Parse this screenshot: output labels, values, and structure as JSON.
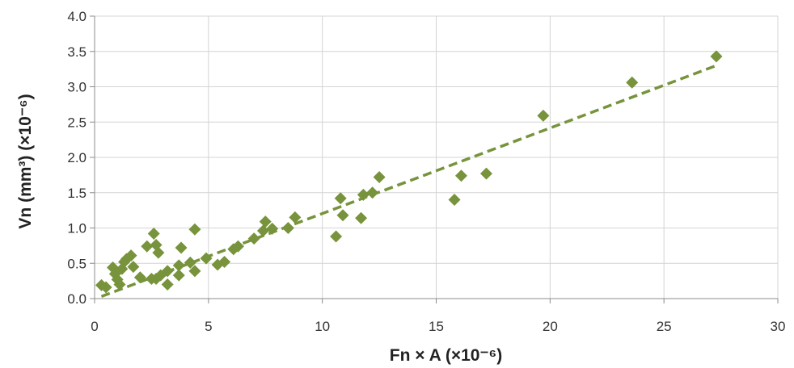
{
  "chart_data": {
    "type": "scatter",
    "xlabel": "Fn × A (×10⁻⁶)",
    "ylabel": "Vn (mm³) (×10⁻⁶)",
    "xlim": [
      0,
      30
    ],
    "ylim": [
      0,
      4.0
    ],
    "x_ticks": [
      "0",
      "5",
      "10",
      "15",
      "20",
      "25",
      "30"
    ],
    "y_ticks": [
      "0.0",
      "0.5",
      "1.0",
      "1.5",
      "2.0",
      "2.5",
      "3.0",
      "3.5",
      "4.0"
    ],
    "grid": true,
    "legend": "none",
    "marker": "diamond",
    "series": [
      {
        "points": [
          [
            0.3,
            0.19
          ],
          [
            0.5,
            0.16
          ],
          [
            0.8,
            0.44
          ],
          [
            0.9,
            0.35
          ],
          [
            1.0,
            0.27
          ],
          [
            1.1,
            0.2
          ],
          [
            1.2,
            0.42
          ],
          [
            1.3,
            0.52
          ],
          [
            1.4,
            0.56
          ],
          [
            1.6,
            0.61
          ],
          [
            1.7,
            0.45
          ],
          [
            2.0,
            0.3
          ],
          [
            2.3,
            0.74
          ],
          [
            2.5,
            0.28
          ],
          [
            2.6,
            0.92
          ],
          [
            2.7,
            0.76
          ],
          [
            2.7,
            0.28
          ],
          [
            2.8,
            0.65
          ],
          [
            2.9,
            0.33
          ],
          [
            3.2,
            0.39
          ],
          [
            3.2,
            0.2
          ],
          [
            3.7,
            0.47
          ],
          [
            3.7,
            0.33
          ],
          [
            3.8,
            0.72
          ],
          [
            4.2,
            0.51
          ],
          [
            4.4,
            0.98
          ],
          [
            4.4,
            0.39
          ],
          [
            4.9,
            0.57
          ],
          [
            5.4,
            0.48
          ],
          [
            5.7,
            0.52
          ],
          [
            6.1,
            0.7
          ],
          [
            6.3,
            0.74
          ],
          [
            7.0,
            0.85
          ],
          [
            7.4,
            0.96
          ],
          [
            7.5,
            1.09
          ],
          [
            7.8,
            0.99
          ],
          [
            8.5,
            1.0
          ],
          [
            8.8,
            1.15
          ],
          [
            10.6,
            0.88
          ],
          [
            10.8,
            1.42
          ],
          [
            10.9,
            1.18
          ],
          [
            11.7,
            1.14
          ],
          [
            11.8,
            1.47
          ],
          [
            12.2,
            1.5
          ],
          [
            12.5,
            1.72
          ],
          [
            15.8,
            1.4
          ],
          [
            16.1,
            1.74
          ],
          [
            17.2,
            1.77
          ],
          [
            19.7,
            2.59
          ],
          [
            23.6,
            3.06
          ],
          [
            27.3,
            3.43
          ]
        ]
      }
    ],
    "trendline": {
      "style": "dashed",
      "x": [
        0.3,
        27.3
      ],
      "y": [
        0.03,
        3.3
      ]
    },
    "colors": {
      "marker": "#77933c",
      "trendline": "#77933c",
      "grid": "#d4d4d4"
    }
  }
}
